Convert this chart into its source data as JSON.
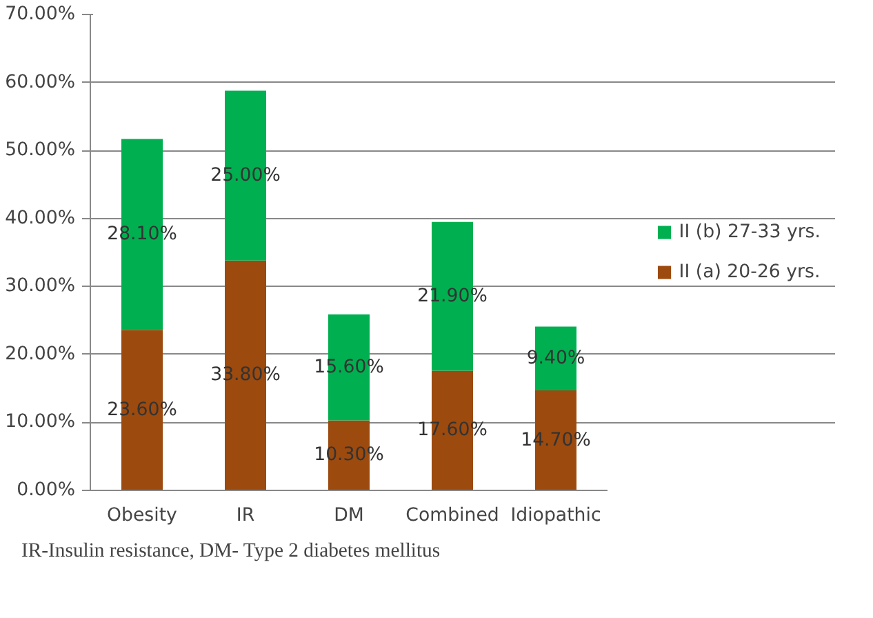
{
  "chart_data": {
    "type": "bar",
    "stacked": true,
    "categories": [
      "Obesity",
      "IR",
      "DM",
      "Combined",
      "Idiopathic"
    ],
    "series": [
      {
        "name": "II (a) 20-26 yrs.",
        "color": "#9c4a0e",
        "values": [
          23.6,
          33.8,
          10.3,
          17.6,
          14.7
        ],
        "value_labels": [
          "23.60%",
          "33.80%",
          "10.30%",
          "17.60%",
          "14.70%"
        ]
      },
      {
        "name": "II (b) 27-33 yrs.",
        "color": "#00b050",
        "values": [
          28.1,
          25.0,
          15.6,
          21.9,
          9.4
        ],
        "value_labels": [
          "28.10%",
          "25.00%",
          "15.60%",
          "21.90%",
          "9.40%"
        ]
      }
    ],
    "ylim": [
      0,
      70
    ],
    "yticks": [
      {
        "value": 0,
        "label": "0.00%"
      },
      {
        "value": 10,
        "label": "10.00%"
      },
      {
        "value": 20,
        "label": "20.00%"
      },
      {
        "value": 30,
        "label": "30.00%"
      },
      {
        "value": 40,
        "label": "40.00%"
      },
      {
        "value": 50,
        "label": "50.00%"
      },
      {
        "value": 60,
        "label": "60.00%"
      },
      {
        "value": 70,
        "label": "70.00%"
      }
    ],
    "grid": "y",
    "legend": "right",
    "annotations": [
      "IR-Insulin resistance, DM- Type 2 diabetes mellitus"
    ]
  }
}
